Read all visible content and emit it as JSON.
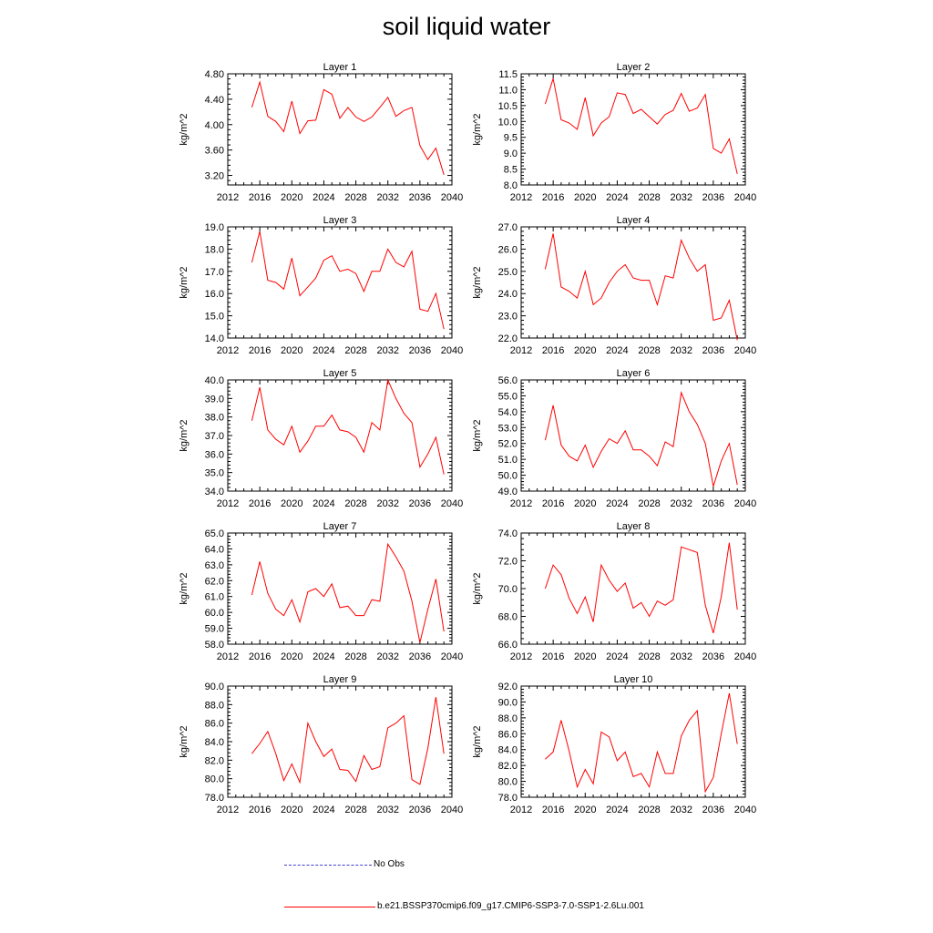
{
  "title": "soil liquid water",
  "chart_data": {
    "type": "line",
    "x": [
      2015,
      2016,
      2017,
      2018,
      2019,
      2020,
      2021,
      2022,
      2023,
      2024,
      2025,
      2026,
      2027,
      2028,
      2029,
      2030,
      2031,
      2032,
      2033,
      2034,
      2035,
      2036,
      2037,
      2038,
      2039
    ],
    "xlim": [
      2012,
      2040
    ],
    "xticks": [
      "2012",
      "2016",
      "2020",
      "2024",
      "2028",
      "2032",
      "2036",
      "2040"
    ],
    "ylabel": "kg/m^2",
    "grid": false,
    "panels": [
      {
        "title": "Layer 1",
        "ylim": [
          3.05,
          4.8
        ],
        "yticks": [
          "3.20",
          "3.60",
          "4.00",
          "4.40",
          "4.80"
        ],
        "values": [
          4.27,
          4.67,
          4.13,
          4.05,
          3.89,
          4.37,
          3.86,
          4.06,
          4.07,
          4.55,
          4.48,
          4.1,
          4.27,
          4.12,
          4.05,
          4.12,
          4.27,
          4.43,
          4.13,
          4.22,
          4.27,
          3.67,
          3.45,
          3.63,
          3.21
        ]
      },
      {
        "title": "Layer 2",
        "ylim": [
          8.0,
          11.5
        ],
        "yticks": [
          "8.0",
          "8.5",
          "9.0",
          "9.5",
          "10.0",
          "10.5",
          "11.0",
          "11.5"
        ],
        "values": [
          10.55,
          11.35,
          10.05,
          9.95,
          9.75,
          10.75,
          9.55,
          9.95,
          10.15,
          10.9,
          10.85,
          10.25,
          10.38,
          10.15,
          9.92,
          10.22,
          10.35,
          10.88,
          10.32,
          10.42,
          10.85,
          9.15,
          9.0,
          9.45,
          8.35
        ]
      },
      {
        "title": "Layer 3",
        "ylim": [
          14.0,
          19.0
        ],
        "yticks": [
          "14.0",
          "15.0",
          "16.0",
          "17.0",
          "18.0",
          "19.0"
        ],
        "values": [
          17.4,
          18.8,
          16.6,
          16.5,
          16.2,
          17.6,
          15.9,
          16.3,
          16.7,
          17.5,
          17.7,
          17.0,
          17.1,
          16.9,
          16.1,
          17.0,
          17.0,
          18.0,
          17.4,
          17.2,
          17.9,
          15.3,
          15.2,
          16.0,
          14.4
        ]
      },
      {
        "title": "Layer 4",
        "ylim": [
          22.0,
          27.0
        ],
        "yticks": [
          "22.0",
          "23.0",
          "24.0",
          "25.0",
          "26.0",
          "27.0"
        ],
        "values": [
          25.1,
          26.7,
          24.3,
          24.1,
          23.8,
          25.0,
          23.5,
          23.8,
          24.5,
          25.0,
          25.3,
          24.7,
          24.6,
          24.6,
          23.5,
          24.8,
          24.7,
          26.4,
          25.6,
          25.0,
          25.3,
          22.8,
          22.9,
          23.7,
          21.9
        ]
      },
      {
        "title": "Layer 5",
        "ylim": [
          34.0,
          40.0
        ],
        "yticks": [
          "34.0",
          "35.0",
          "36.0",
          "37.0",
          "38.0",
          "39.0",
          "40.0"
        ],
        "values": [
          37.8,
          39.6,
          37.3,
          36.8,
          36.5,
          37.5,
          36.1,
          36.7,
          37.5,
          37.5,
          38.1,
          37.3,
          37.2,
          36.9,
          36.1,
          37.7,
          37.3,
          40.0,
          39.0,
          38.2,
          37.7,
          35.3,
          36.0,
          36.9,
          34.9
        ]
      },
      {
        "title": "Layer 6",
        "ylim": [
          49.0,
          56.0
        ],
        "yticks": [
          "49.0",
          "50.0",
          "51.0",
          "52.0",
          "53.0",
          "54.0",
          "55.0",
          "56.0"
        ],
        "values": [
          52.2,
          54.4,
          51.9,
          51.2,
          50.9,
          51.9,
          50.5,
          51.5,
          52.3,
          52.0,
          52.8,
          51.6,
          51.6,
          51.2,
          50.6,
          52.1,
          51.8,
          55.2,
          54.0,
          53.2,
          52.0,
          49.3,
          50.9,
          52.0,
          49.4
        ]
      },
      {
        "title": "Layer 7",
        "ylim": [
          58.0,
          65.0
        ],
        "yticks": [
          "58.0",
          "59.0",
          "60.0",
          "61.0",
          "62.0",
          "63.0",
          "64.0",
          "65.0"
        ],
        "values": [
          61.1,
          63.2,
          61.2,
          60.2,
          59.8,
          60.8,
          59.4,
          61.3,
          61.5,
          61.0,
          61.8,
          60.3,
          60.4,
          59.8,
          59.8,
          60.8,
          60.7,
          64.3,
          63.5,
          62.6,
          60.7,
          58.1,
          60.2,
          62.1,
          58.8
        ]
      },
      {
        "title": "Layer 8",
        "ylim": [
          66.0,
          74.0
        ],
        "yticks": [
          "66.0",
          "68.0",
          "70.0",
          "72.0",
          "74.0"
        ],
        "values": [
          70.0,
          71.7,
          71.0,
          69.3,
          68.2,
          69.4,
          67.6,
          71.7,
          70.6,
          69.8,
          70.4,
          68.6,
          69.0,
          68.0,
          69.1,
          68.8,
          69.2,
          73.0,
          72.8,
          72.6,
          68.8,
          66.8,
          69.4,
          73.3,
          68.5
        ]
      },
      {
        "title": "Layer 9",
        "ylim": [
          78.0,
          90.0
        ],
        "yticks": [
          "78.0",
          "80.0",
          "82.0",
          "84.0",
          "86.0",
          "88.0",
          "90.0"
        ],
        "values": [
          82.7,
          83.8,
          85.1,
          82.7,
          79.8,
          81.6,
          79.6,
          86.0,
          84.0,
          82.4,
          83.2,
          81.0,
          80.9,
          79.7,
          82.5,
          81.0,
          81.3,
          85.5,
          86.0,
          86.8,
          79.9,
          79.4,
          83.3,
          88.8,
          82.7
        ]
      },
      {
        "title": "Layer 10",
        "ylim": [
          78.0,
          92.0
        ],
        "yticks": [
          "78.0",
          "80.0",
          "82.0",
          "84.0",
          "86.0",
          "88.0",
          "90.0",
          "92.0"
        ],
        "values": [
          82.8,
          83.7,
          87.7,
          83.8,
          79.3,
          81.5,
          79.7,
          86.2,
          85.6,
          82.6,
          83.7,
          80.6,
          81.0,
          79.3,
          83.7,
          81.0,
          81.0,
          85.7,
          87.7,
          88.9,
          78.7,
          80.5,
          86.0,
          91.1,
          84.7
        ]
      }
    ],
    "series": [
      {
        "name": "b.e21.BSSP370cmip6.f09_g17.CMIP6-SSP3-7.0-SSP1-2.6Lu.001",
        "color": "#ff0000"
      }
    ],
    "obs_series": {
      "name": "No Obs",
      "color": "#3f3fcf"
    },
    "legend_position": "bottom"
  }
}
